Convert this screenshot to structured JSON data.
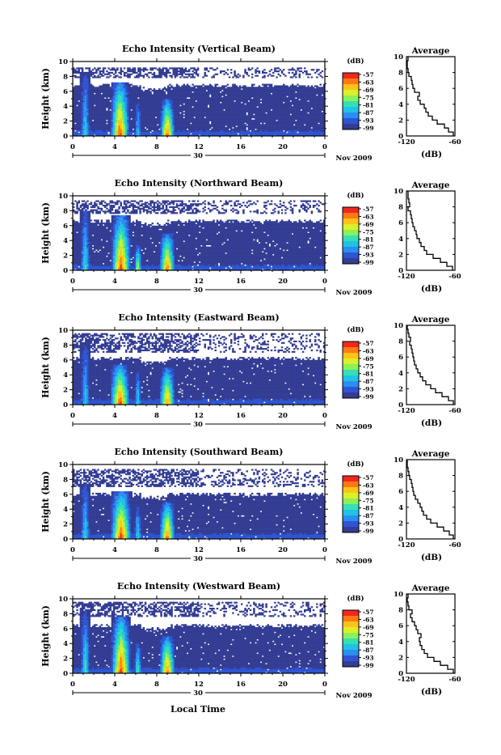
{
  "figure": {
    "x_axis_label": "Local Time",
    "date_label": "Nov 2009",
    "day_label": "30"
  },
  "colors": {
    "background_echo": "#333d93",
    "colormap": [
      "#333d93",
      "#2f55d3",
      "#2b8ef0",
      "#20c2e6",
      "#35e0b4",
      "#8bf05a",
      "#dbf02a",
      "#ffc21a",
      "#ff7a12",
      "#f0281e"
    ]
  },
  "chart_data": [
    {
      "type": "heatmap",
      "title": "Echo Intensity (Vertical Beam)",
      "ylabel": "Height (km)",
      "xlim": [
        0,
        24
      ],
      "ylim": [
        0,
        10
      ],
      "xticks": [
        "0",
        "4",
        "8",
        "12",
        "16",
        "20",
        "0"
      ],
      "yticks": [
        "0",
        "2",
        "4",
        "6",
        "8",
        "10"
      ],
      "colorbar": {
        "label": "(dB)",
        "ticks": [
          "-57",
          "-63",
          "-69",
          "-75",
          "-81",
          "-87",
          "-93",
          "-99"
        ]
      },
      "echo_top_km": 6.8,
      "upper_layer_km": [
        7.8,
        9.2
      ],
      "convective_cells": [
        {
          "t": 1.2,
          "w": 0.45,
          "top_km": 8.5,
          "peak_db": -80
        },
        {
          "t": 4.5,
          "w": 0.9,
          "top_km": 7.2,
          "peak_db": -58
        },
        {
          "t": 6.2,
          "w": 0.35,
          "top_km": 4.5,
          "peak_db": -82
        },
        {
          "t": 9.0,
          "w": 0.7,
          "top_km": 5.0,
          "peak_db": -60
        }
      ],
      "average": {
        "title": "Average",
        "xlabel": "(dB)",
        "ylabel": "",
        "xlim": [
          -120,
          -60
        ],
        "xticks": [
          "-120",
          "-60"
        ],
        "ylim": [
          0,
          10
        ],
        "yticks": [
          "0",
          "2",
          "4",
          "6",
          "8",
          "10"
        ],
        "height_km": [
          0,
          0.5,
          1,
          1.5,
          2,
          2.5,
          3,
          3.5,
          4,
          4.5,
          5,
          5.5,
          6,
          6.5,
          7,
          7.5,
          8,
          8.5,
          9,
          9.5
        ],
        "value_db": [
          -62,
          -68,
          -73,
          -82,
          -88,
          -93,
          -96,
          -98,
          -103,
          -106,
          -104,
          -110,
          -112,
          -113,
          -114,
          -117,
          -118,
          -119,
          -119,
          -118
        ]
      }
    },
    {
      "type": "heatmap",
      "title": "Echo Intensity (Northward Beam)",
      "ylabel": "Height (km)",
      "xlim": [
        0,
        24
      ],
      "ylim": [
        0,
        10
      ],
      "xticks": [
        "0",
        "4",
        "8",
        "12",
        "16",
        "20",
        "0"
      ],
      "yticks": [
        "0",
        "2",
        "4",
        "6",
        "8",
        "10"
      ],
      "colorbar": {
        "label": "(dB)",
        "ticks": [
          "-57",
          "-63",
          "-69",
          "-75",
          "-81",
          "-87",
          "-93",
          "-99"
        ]
      },
      "echo_top_km": 6.6,
      "upper_layer_km": [
        7.6,
        9.4
      ],
      "convective_cells": [
        {
          "t": 1.2,
          "w": 0.45,
          "top_km": 8.0,
          "peak_db": -78
        },
        {
          "t": 4.6,
          "w": 0.95,
          "top_km": 7.5,
          "peak_db": -58
        },
        {
          "t": 6.2,
          "w": 0.35,
          "top_km": 3.5,
          "peak_db": -70
        },
        {
          "t": 9.0,
          "w": 0.75,
          "top_km": 5.0,
          "peak_db": -60
        }
      ],
      "average": {
        "title": "Average",
        "xlabel": "(dB)",
        "ylabel": "",
        "xlim": [
          -120,
          -60
        ],
        "xticks": [
          "-120",
          "-60"
        ],
        "ylim": [
          0,
          10
        ],
        "yticks": [
          "0",
          "2",
          "4",
          "6",
          "8",
          "10"
        ],
        "height_km": [
          0,
          0.5,
          1,
          1.5,
          2,
          2.5,
          3,
          3.5,
          4,
          4.5,
          5,
          5.5,
          6,
          6.5,
          7,
          7.5,
          8,
          8.5,
          9,
          9.5
        ],
        "value_db": [
          -63,
          -70,
          -78,
          -87,
          -95,
          -98,
          -102,
          -104,
          -107,
          -108,
          -110,
          -112,
          -113,
          -114,
          -115,
          -118,
          -116,
          -117,
          -118,
          -118
        ]
      }
    },
    {
      "type": "heatmap",
      "title": "Echo Intensity (Eastward Beam)",
      "ylabel": "Height (km)",
      "xlim": [
        0,
        24
      ],
      "ylim": [
        0,
        10
      ],
      "xticks": [
        "0",
        "4",
        "8",
        "12",
        "16",
        "20",
        "0"
      ],
      "yticks": [
        "0",
        "2",
        "4",
        "6",
        "8",
        "10"
      ],
      "colorbar": {
        "label": "(dB)",
        "ticks": [
          "-57",
          "-63",
          "-69",
          "-75",
          "-81",
          "-87",
          "-93",
          "-99"
        ]
      },
      "echo_top_km": 6.2,
      "upper_layer_km": [
        7.0,
        9.6
      ],
      "convective_cells": [
        {
          "t": 1.2,
          "w": 0.45,
          "top_km": 8.5,
          "peak_db": -82
        },
        {
          "t": 4.5,
          "w": 0.95,
          "top_km": 5.5,
          "peak_db": -58
        },
        {
          "t": 6.2,
          "w": 0.35,
          "top_km": 4.5,
          "peak_db": -80
        },
        {
          "t": 9.0,
          "w": 0.75,
          "top_km": 5.0,
          "peak_db": -62
        }
      ],
      "average": {
        "title": "Average",
        "xlabel": "(dB)",
        "ylabel": "",
        "xlim": [
          -120,
          -60
        ],
        "xticks": [
          "-120",
          "-60"
        ],
        "ylim": [
          0,
          10
        ],
        "yticks": [
          "0",
          "2",
          "4",
          "6",
          "8",
          "10"
        ],
        "height_km": [
          0,
          0.5,
          1,
          1.5,
          2,
          2.5,
          3,
          3.5,
          4,
          4.5,
          5,
          5.5,
          6,
          6.5,
          7,
          7.5,
          8,
          8.5,
          9,
          9.5
        ],
        "value_db": [
          -62,
          -68,
          -76,
          -84,
          -90,
          -96,
          -100,
          -103,
          -106,
          -108,
          -110,
          -111,
          -112,
          -113,
          -114,
          -116,
          -115,
          -117,
          -118,
          -119
        ]
      }
    },
    {
      "type": "heatmap",
      "title": "Echo Intensity (Southward Beam)",
      "ylabel": "Height (km)",
      "xlim": [
        0,
        24
      ],
      "ylim": [
        0,
        10
      ],
      "xticks": [
        "0",
        "4",
        "8",
        "12",
        "16",
        "20",
        "0"
      ],
      "yticks": [
        "0",
        "2",
        "4",
        "6",
        "8",
        "10"
      ],
      "colorbar": {
        "label": "(dB)",
        "ticks": [
          "-57",
          "-63",
          "-69",
          "-75",
          "-81",
          "-87",
          "-93",
          "-99"
        ]
      },
      "echo_top_km": 6.0,
      "upper_layer_km": [
        7.0,
        9.5
      ],
      "convective_cells": [
        {
          "t": 1.2,
          "w": 0.45,
          "top_km": 7.5,
          "peak_db": -80
        },
        {
          "t": 4.6,
          "w": 1.0,
          "top_km": 6.5,
          "peak_db": -58
        },
        {
          "t": 6.2,
          "w": 0.35,
          "top_km": 4.5,
          "peak_db": -80
        },
        {
          "t": 9.0,
          "w": 0.75,
          "top_km": 5.0,
          "peak_db": -60
        }
      ],
      "average": {
        "title": "Average",
        "xlabel": "(dB)",
        "ylabel": "",
        "xlim": [
          -120,
          -60
        ],
        "xticks": [
          "-120",
          "-60"
        ],
        "ylim": [
          0,
          10
        ],
        "yticks": [
          "0",
          "2",
          "4",
          "6",
          "8",
          "10"
        ],
        "height_km": [
          0,
          0.5,
          1,
          1.5,
          2,
          2.5,
          3,
          3.5,
          4,
          4.5,
          5,
          5.5,
          6,
          6.5,
          7,
          7.5,
          8,
          8.5,
          9,
          9.5
        ],
        "value_db": [
          -62,
          -67,
          -74,
          -82,
          -90,
          -95,
          -99,
          -101,
          -103,
          -106,
          -109,
          -111,
          -112,
          -113,
          -114,
          -116,
          -117,
          -118,
          -119,
          -119
        ]
      }
    },
    {
      "type": "heatmap",
      "title": "Echo Intensity (Westward Beam)",
      "ylabel": "Height (km)",
      "xlim": [
        0,
        24
      ],
      "ylim": [
        0,
        10
      ],
      "xticks": [
        "0",
        "4",
        "8",
        "12",
        "16",
        "20",
        "0"
      ],
      "yticks": [
        "0",
        "2",
        "4",
        "6",
        "8",
        "10"
      ],
      "colorbar": {
        "label": "(dB)",
        "ticks": [
          "-57",
          "-63",
          "-69",
          "-75",
          "-81",
          "-87",
          "-93",
          "-99"
        ]
      },
      "echo_top_km": 6.4,
      "upper_layer_km": [
        7.5,
        9.6
      ],
      "convective_cells": [
        {
          "t": 1.2,
          "w": 0.45,
          "top_km": 8.5,
          "peak_db": -78
        },
        {
          "t": 4.6,
          "w": 0.95,
          "top_km": 7.6,
          "peak_db": -58
        },
        {
          "t": 6.2,
          "w": 0.35,
          "top_km": 4.0,
          "peak_db": -75
        },
        {
          "t": 9.0,
          "w": 0.75,
          "top_km": 5.0,
          "peak_db": -60
        }
      ],
      "average": {
        "title": "Average",
        "xlabel": "(dB)",
        "ylabel": "",
        "xlim": [
          -120,
          -60
        ],
        "xticks": [
          "-120",
          "-60"
        ],
        "ylim": [
          0,
          10
        ],
        "yticks": [
          "0",
          "2",
          "4",
          "6",
          "8",
          "10"
        ],
        "height_km": [
          0,
          0.5,
          1,
          1.5,
          2,
          2.5,
          3,
          3.5,
          4,
          4.5,
          5,
          5.5,
          6,
          6.5,
          7,
          7.5,
          8,
          8.5,
          9,
          9.5
        ],
        "value_db": [
          -62,
          -69,
          -78,
          -86,
          -94,
          -98,
          -101,
          -103,
          -104,
          -102,
          -106,
          -108,
          -110,
          -113,
          -115,
          -113,
          -117,
          -118,
          -119,
          -118
        ]
      }
    }
  ]
}
